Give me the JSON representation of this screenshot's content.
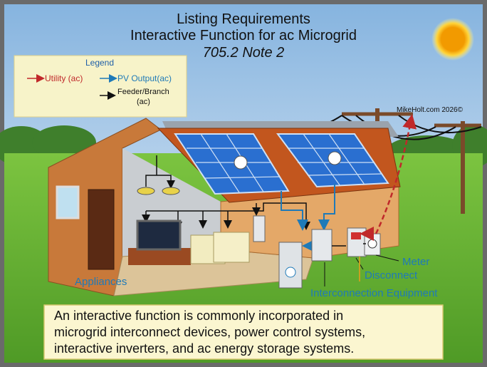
{
  "title": {
    "line1": "Listing Requirements",
    "line2": "Interactive Function for ac Microgrid",
    "line3": "705.2 Note 2"
  },
  "legend": {
    "title": "Legend",
    "utility": "Utility (ac)",
    "pv_output": "PV Output(ac)",
    "feeder": [
      "Feeder/Branch",
      "(ac)"
    ]
  },
  "copyright": "MikeHolt.com 2026©",
  "labels": {
    "appliances": "Appliances",
    "meter": "Meter",
    "disconnect": "Disconnect",
    "interconnection": "Interconnection Equipment"
  },
  "caption": [
    "An interactive function is commonly incorporated in",
    "microgrid interconnect devices, power control systems,",
    "interactive inverters, and ac energy storage systems."
  ]
}
